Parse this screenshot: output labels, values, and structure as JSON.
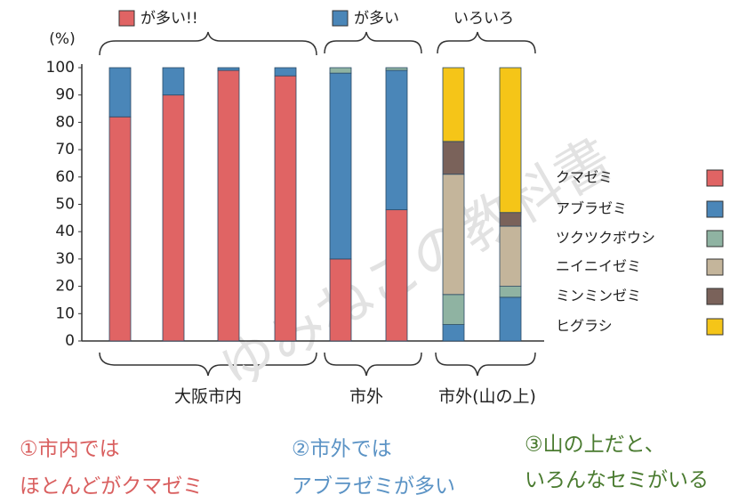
{
  "chart_data": {
    "type": "stacked_bar",
    "y_label": "(%)",
    "categories": [
      null,
      null,
      null,
      null,
      null,
      null,
      null,
      null
    ],
    "series": [
      {
        "name": "クマゼミ",
        "color": "#e06464",
        "values": [
          82,
          90,
          99,
          97,
          30,
          48,
          0,
          0
        ]
      },
      {
        "name": "アブラゼミ",
        "color": "#4a86b8",
        "values": [
          18,
          10,
          1,
          3,
          68,
          51,
          6,
          16
        ]
      },
      {
        "name": "ツクツクボウシ",
        "color": "#8fb3a2",
        "values": [
          0,
          0,
          0,
          0,
          2,
          1,
          11,
          4
        ]
      },
      {
        "name": "ニイニイゼミ",
        "color": "#c4b59b",
        "values": [
          0,
          0,
          0,
          0,
          0,
          0,
          44,
          22
        ]
      },
      {
        "name": "ミンミンゼミ",
        "color": "#7a625a",
        "values": [
          0,
          0,
          0,
          0,
          0,
          0,
          12,
          5
        ]
      },
      {
        "name": "ヒグラシ",
        "color": "#f5c518",
        "values": [
          0,
          0,
          0,
          0,
          0,
          0,
          27,
          53
        ]
      }
    ],
    "ylim": [
      0,
      100
    ],
    "yticks": [
      0,
      10,
      20,
      30,
      40,
      50,
      60,
      70,
      80,
      90,
      100
    ],
    "legend": "right",
    "top_labels": [
      "が多い!!",
      "が多い",
      "いろいろ"
    ],
    "group_labels": [
      "大阪市内",
      "市外",
      "市外(山の上)"
    ],
    "notes": [
      "①市内では",
      "ほとんどがクマゼミ",
      "②市外では",
      "アブラゼミが多い",
      "③山の上だと、",
      "いろんなセミがいる"
    ],
    "watermark": "ゆみねこの教科書"
  }
}
